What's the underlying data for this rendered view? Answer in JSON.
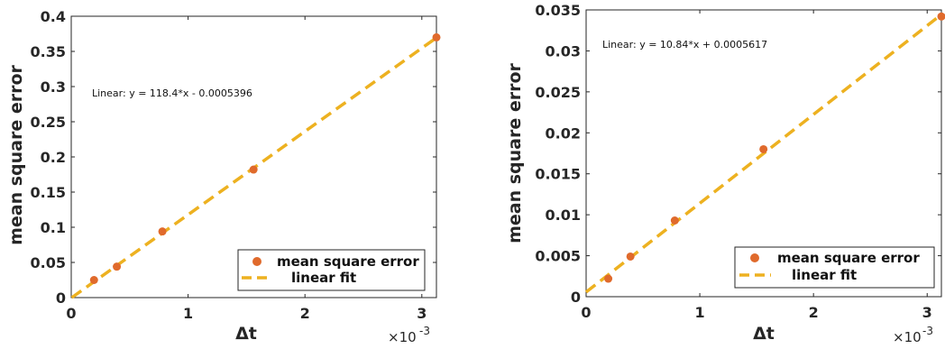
{
  "colors": {
    "point": "#E06A2C",
    "fit": "#EDB120",
    "axis": "#262626",
    "background": "#ffffff"
  },
  "chart_data": [
    {
      "type": "scatter",
      "xlabel": "Δt",
      "ylabel": "mean square error",
      "x_exponent_base": "×10",
      "x_exponent_power": "-3",
      "xlim": [
        0,
        0.003125
      ],
      "ylim": [
        0,
        0.4
      ],
      "x_ticks": [
        0,
        0.001,
        0.002,
        0.003
      ],
      "x_tick_labels": [
        "0",
        "1",
        "2",
        "3"
      ],
      "y_ticks": [
        0,
        0.05,
        0.1,
        0.15,
        0.2,
        0.25,
        0.3,
        0.35,
        0.4
      ],
      "y_tick_labels": [
        "0",
        "0.05",
        "0.1",
        "0.15",
        "0.2",
        "0.25",
        "0.3",
        "0.35",
        "0.4"
      ],
      "series": [
        {
          "name": "mean square error",
          "kind": "scatter",
          "x": [
            0.000195,
            0.00039,
            0.00078,
            0.00156,
            0.003125
          ],
          "y": [
            0.025,
            0.044,
            0.094,
            0.182,
            0.37
          ]
        },
        {
          "name": "linear fit",
          "kind": "line",
          "slope": 118.4,
          "intercept": -0.0005396
        }
      ],
      "annotation": "Linear:  y = 118.4*x - 0.0005396",
      "legend_position": "bottom-right",
      "grid": false
    },
    {
      "type": "scatter",
      "xlabel": "Δt",
      "ylabel": "mean square error",
      "x_exponent_base": "×10",
      "x_exponent_power": "-3",
      "xlim": [
        0,
        0.003125
      ],
      "ylim": [
        0,
        0.035
      ],
      "x_ticks": [
        0,
        0.001,
        0.002,
        0.003
      ],
      "x_tick_labels": [
        "0",
        "1",
        "2",
        "3"
      ],
      "y_ticks": [
        0,
        0.005,
        0.01,
        0.015,
        0.02,
        0.025,
        0.03,
        0.035
      ],
      "y_tick_labels": [
        "0",
        "0.005",
        "0.01",
        "0.015",
        "0.02",
        "0.025",
        "0.03",
        "0.035"
      ],
      "series": [
        {
          "name": "mean square error",
          "kind": "scatter",
          "x": [
            0.000195,
            0.00039,
            0.00078,
            0.00156,
            0.003125
          ],
          "y": [
            0.0022,
            0.0049,
            0.0093,
            0.018,
            0.0342
          ]
        },
        {
          "name": "linear fit",
          "kind": "line",
          "slope": 10.84,
          "intercept": 0.0005617
        }
      ],
      "annotation": "Linear:  y = 10.84*x + 0.0005617",
      "legend_position": "bottom-right",
      "grid": false
    }
  ]
}
